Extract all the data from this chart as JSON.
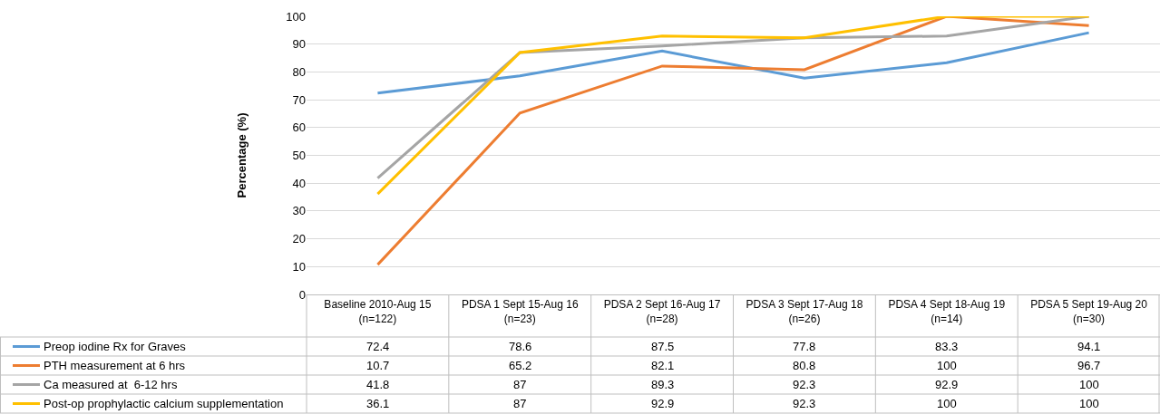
{
  "chart_data": {
    "type": "line",
    "ylabel": "Percentage (%)",
    "categories": [
      "Baseline 2010-Aug 15\n(n=122)",
      "PDSA 1 Sept 15-Aug 16\n(n=23)",
      "PDSA 2 Sept 16-Aug 17\n(n=28)",
      "PDSA 3 Sept 17-Aug 18\n(n=26)",
      "PDSA 4 Sept 18-Aug 19\n(n=14)",
      "PDSA 5 Sept 19-Aug 20\n(n=30)"
    ],
    "series": [
      {
        "name": "Preop iodine Rx for Graves",
        "color": "#5b9bd5",
        "values": [
          72.4,
          78.6,
          87.5,
          77.8,
          83.3,
          94.1
        ]
      },
      {
        "name": "PTH measurement at 6 hrs",
        "color": "#ed7d31",
        "values": [
          10.7,
          65.2,
          82.1,
          80.8,
          100,
          96.7
        ]
      },
      {
        "name": "Ca measured at  6-12 hrs",
        "color": "#a5a5a5",
        "values": [
          41.8,
          87,
          89.3,
          92.3,
          92.9,
          100
        ]
      },
      {
        "name": "Post-op prophylactic calcium supplementation",
        "color": "#ffc000",
        "values": [
          36.1,
          87,
          92.9,
          92.3,
          100,
          100
        ]
      }
    ],
    "ylim": [
      0,
      100
    ],
    "yticks": [
      0,
      10,
      20,
      30,
      40,
      50,
      60,
      70,
      80,
      90,
      100
    ],
    "grid": "y",
    "legend": "bottom left",
    "data_labels": true,
    "marker": "none",
    "line_style": "solid"
  }
}
